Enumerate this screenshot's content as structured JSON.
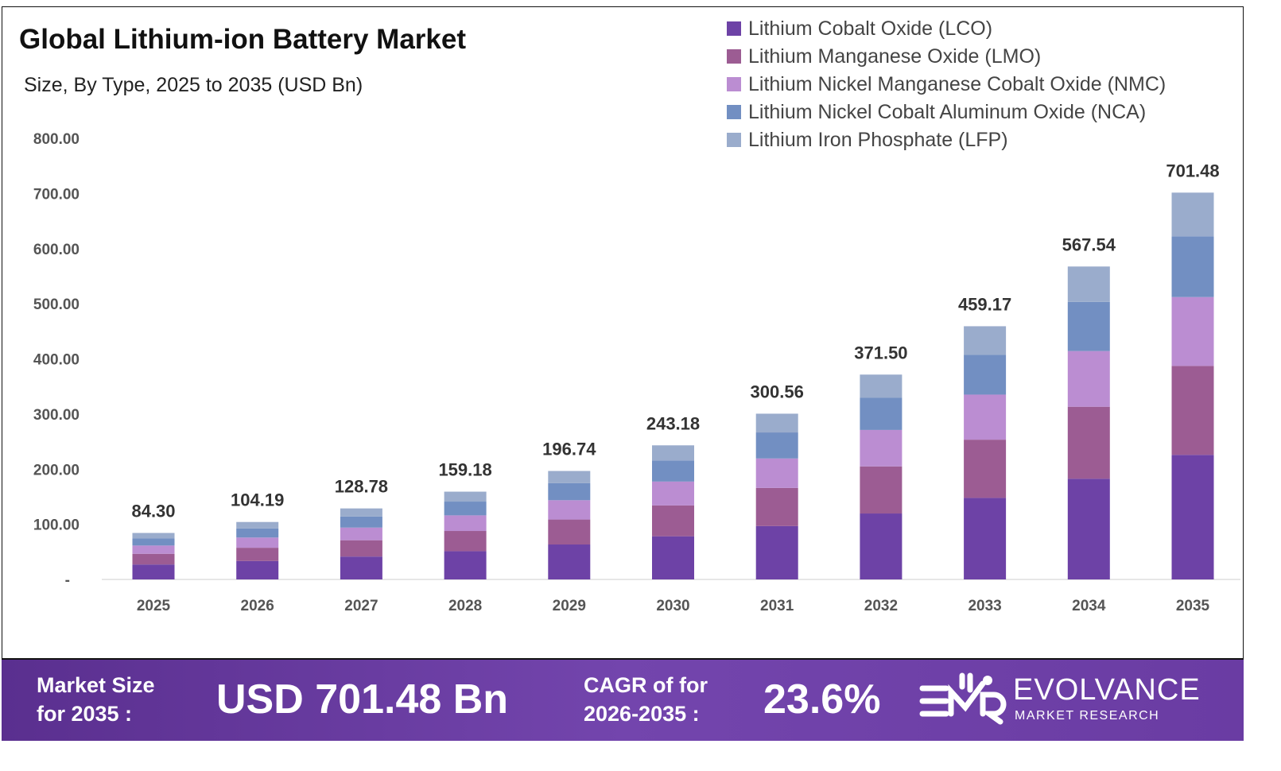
{
  "chart_data": {
    "type": "bar",
    "stacked": true,
    "title": "Global Lithium-ion Battery Market",
    "subtitle": "Size, By Type, 2025 to 2035 (USD Bn)",
    "categories": [
      "2025",
      "2026",
      "2027",
      "2028",
      "2029",
      "2030",
      "2031",
      "2032",
      "2033",
      "2034",
      "2035"
    ],
    "totals": [
      "84.30",
      "104.19",
      "128.78",
      "159.18",
      "196.74",
      "243.18",
      "300.56",
      "371.50",
      "459.17",
      "567.54",
      "701.48"
    ],
    "series": [
      {
        "name": "Lithium Cobalt Oxide (LCO)",
        "color": "#6d42a6",
        "values": [
          27.1,
          33.5,
          41.5,
          51.3,
          63.4,
          78.3,
          96.8,
          119.6,
          147.9,
          182.7,
          225.9
        ]
      },
      {
        "name": "Lithium Manganese Oxide (LMO)",
        "color": "#9c5c93",
        "values": [
          19.4,
          24.0,
          29.6,
          36.6,
          45.3,
          55.9,
          69.1,
          85.4,
          105.6,
          130.5,
          161.3
        ]
      },
      {
        "name": "Lithium Nickel Manganese Cobalt Oxide (NMC)",
        "color": "#bb8dd2",
        "values": [
          15.0,
          18.5,
          22.9,
          28.3,
          35.0,
          43.3,
          53.5,
          66.1,
          81.7,
          101.0,
          124.9
        ]
      },
      {
        "name": "Lithium Nickel Cobalt Aluminum Oxide (NCA)",
        "color": "#728fc2",
        "values": [
          13.2,
          16.4,
          20.2,
          25.0,
          30.9,
          38.2,
          47.2,
          58.3,
          72.1,
          89.1,
          110.1
        ]
      },
      {
        "name": "Lithium Iron Phosphate (LFP)",
        "color": "#9aaccc",
        "values": [
          9.6,
          11.8,
          14.6,
          18.0,
          22.1,
          27.5,
          34.0,
          42.1,
          51.9,
          64.2,
          79.3
        ]
      }
    ],
    "yticks": [
      "-",
      "100.00",
      "200.00",
      "300.00",
      "400.00",
      "500.00",
      "600.00",
      "700.00",
      "800.00"
    ],
    "ylim": [
      0,
      800
    ],
    "grid": false,
    "legend_position": "top-right"
  },
  "footer": {
    "market_size_label": [
      "Market Size",
      "for 2035 :"
    ],
    "market_size_value": "USD 701.48 Bn",
    "cagr_label": [
      "CAGR of for",
      "2026-2035 :"
    ],
    "cagr_value": "23.6%",
    "logo": {
      "mark": "EMR",
      "name": "EVOLVANCE",
      "tagline": "MARKET RESEARCH"
    }
  }
}
